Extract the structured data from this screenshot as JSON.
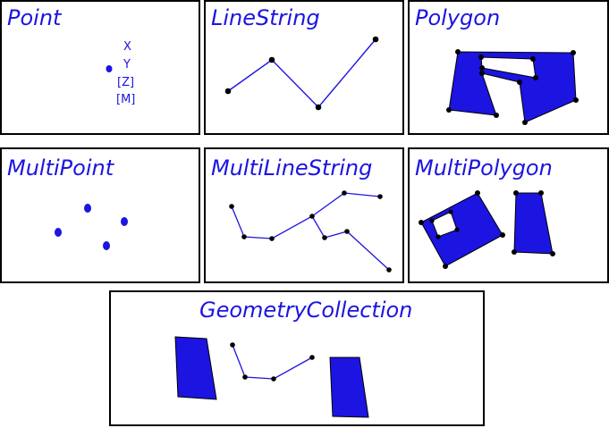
{
  "colors": {
    "geometry": "#1c14e0",
    "vertex": "#000000",
    "panel_border": "#000000"
  },
  "panels": {
    "point": {
      "title": "Point",
      "coords": [
        "X",
        "Y",
        "[Z]",
        "[M]"
      ]
    },
    "linestring": {
      "title": "LineString"
    },
    "polygon": {
      "title": "Polygon"
    },
    "multipoint": {
      "title": "MultiPoint"
    },
    "multilinestring": {
      "title": "MultiLineString"
    },
    "multipolygon": {
      "title": "MultiPolygon"
    },
    "geometrycollection": {
      "title": "GeometryCollection"
    }
  }
}
